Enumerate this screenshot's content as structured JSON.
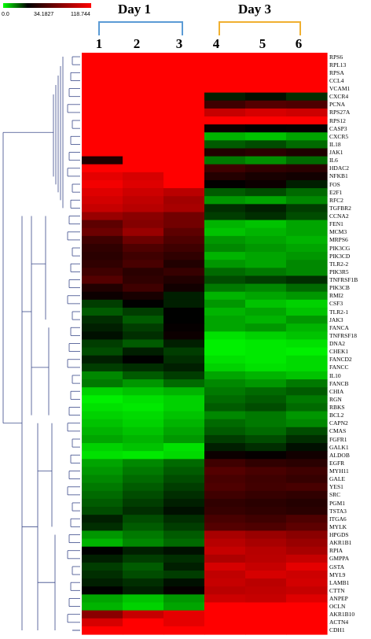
{
  "legend": {
    "min_label": "0.0",
    "mid_label": "34.1827",
    "max_label": "118.744",
    "colors": {
      "low": "#00ff00",
      "mid": "#000000",
      "high": "#ff0000"
    }
  },
  "groups": [
    {
      "label": "Day 1",
      "color": "#5b9bd5"
    },
    {
      "label": "Day 3",
      "color": "#f0b030"
    }
  ],
  "column_labels": [
    "1",
    "2",
    "3",
    "4",
    "5",
    "6"
  ],
  "chart_data": {
    "type": "heatmap",
    "title": "",
    "scale": {
      "min": 0.0,
      "mid": 34.1827,
      "max": 118.744
    },
    "columns": [
      "1",
      "2",
      "3",
      "4",
      "5",
      "6"
    ],
    "rows": [
      "RPS6",
      "RPL13",
      "RPSA",
      "CCL4",
      "VCAM1",
      "CXCR4",
      "PCNA",
      "RPS27A",
      "RPS12",
      "CASP3",
      "CXCR5",
      "IL18",
      "JAK1",
      "IL6",
      "HDAC2",
      "NFKB1",
      "FOS",
      "E2F1",
      "RFC2",
      "TGFBR2",
      "CCNA2",
      "FEN1",
      "MCM3",
      "MRPS6",
      "PIK3CG",
      "PIK3CD",
      "TLR2-2",
      "PIK3R5",
      "TNFRSF1B",
      "PIK3CB",
      "RMI2",
      "CSF3",
      "TLR2-1",
      "JAK3",
      "FANCA",
      "TNFRSF18",
      "DNA2",
      "CHEK1",
      "FANCD2",
      "FANCC",
      "IL10",
      "FANCB",
      "CHIA",
      "RGN",
      "RBKS",
      "BCL2",
      "CAPN2",
      "CMAS",
      "FGFR1",
      "GALK1",
      "ALDOB",
      "EGFR",
      "MYH11",
      "GALE",
      "YES1",
      "SRC",
      "PGM1",
      "TSTA3",
      "ITGA6",
      "MYLK",
      "HPGDS",
      "AKR1B1",
      "RPIA",
      "GMPPA",
      "GSTA",
      "MYL9",
      "LAMB1",
      "CTTN",
      "ANPEP",
      "OCLN",
      "AKR1B10",
      "ACTN4",
      "CDH1"
    ],
    "values": [
      [
        119,
        119,
        119,
        119,
        119,
        119
      ],
      [
        119,
        119,
        119,
        119,
        119,
        119
      ],
      [
        119,
        119,
        119,
        119,
        119,
        119
      ],
      [
        119,
        119,
        119,
        119,
        119,
        119
      ],
      [
        119,
        119,
        119,
        119,
        119,
        119
      ],
      [
        119,
        119,
        119,
        30,
        32,
        28
      ],
      [
        119,
        119,
        119,
        55,
        62,
        60
      ],
      [
        119,
        119,
        119,
        100,
        105,
        102
      ],
      [
        119,
        119,
        119,
        119,
        119,
        119
      ],
      [
        119,
        119,
        119,
        38,
        35,
        36
      ],
      [
        119,
        119,
        119,
        10,
        8,
        12
      ],
      [
        119,
        119,
        119,
        22,
        24,
        20
      ],
      [
        119,
        119,
        119,
        45,
        48,
        44
      ],
      [
        45,
        119,
        119,
        18,
        15,
        20
      ],
      [
        119,
        119,
        119,
        55,
        50,
        48
      ],
      [
        110,
        105,
        119,
        46,
        42,
        40
      ],
      [
        115,
        108,
        119,
        35,
        38,
        30
      ],
      [
        108,
        102,
        96,
        22,
        24,
        20
      ],
      [
        104,
        98,
        88,
        14,
        12,
        16
      ],
      [
        100,
        95,
        90,
        28,
        30,
        26
      ],
      [
        85,
        80,
        72,
        26,
        28,
        24
      ],
      [
        65,
        78,
        72,
        10,
        8,
        12
      ],
      [
        70,
        85,
        65,
        8,
        10,
        12
      ],
      [
        55,
        70,
        60,
        14,
        12,
        10
      ],
      [
        50,
        60,
        55,
        16,
        14,
        12
      ],
      [
        48,
        55,
        50,
        10,
        12,
        14
      ],
      [
        50,
        58,
        45,
        14,
        12,
        16
      ],
      [
        55,
        48,
        52,
        20,
        18,
        16
      ],
      [
        62,
        50,
        45,
        24,
        26,
        28
      ],
      [
        45,
        55,
        40,
        18,
        16,
        20
      ],
      [
        38,
        42,
        30,
        10,
        12,
        14
      ],
      [
        26,
        34,
        30,
        14,
        8,
        6
      ],
      [
        22,
        26,
        34,
        10,
        12,
        8
      ],
      [
        28,
        22,
        34,
        12,
        10,
        14
      ],
      [
        30,
        26,
        36,
        12,
        14,
        10
      ],
      [
        32,
        28,
        38,
        4,
        6,
        8
      ],
      [
        26,
        22,
        30,
        2,
        3,
        4
      ],
      [
        24,
        30,
        26,
        2,
        3,
        2
      ],
      [
        30,
        34,
        28,
        4,
        3,
        5
      ],
      [
        26,
        28,
        30,
        6,
        4,
        5
      ],
      [
        16,
        22,
        26,
        12,
        10,
        8
      ],
      [
        18,
        14,
        20,
        16,
        14,
        18
      ],
      [
        6,
        8,
        10,
        18,
        20,
        22
      ],
      [
        2,
        4,
        6,
        20,
        22,
        18
      ],
      [
        4,
        3,
        6,
        22,
        24,
        20
      ],
      [
        6,
        5,
        8,
        16,
        18,
        14
      ],
      [
        8,
        6,
        10,
        20,
        18,
        16
      ],
      [
        10,
        8,
        12,
        22,
        20,
        24
      ],
      [
        12,
        10,
        14,
        26,
        24,
        28
      ],
      [
        6,
        8,
        4,
        30,
        28,
        32
      ],
      [
        4,
        3,
        5,
        38,
        36,
        40
      ],
      [
        12,
        16,
        20,
        55,
        50,
        48
      ],
      [
        14,
        18,
        22,
        62,
        58,
        55
      ],
      [
        16,
        20,
        24,
        58,
        55,
        52
      ],
      [
        18,
        22,
        26,
        60,
        56,
        58
      ],
      [
        20,
        24,
        28,
        55,
        52,
        50
      ],
      [
        22,
        26,
        30,
        50,
        48,
        46
      ],
      [
        24,
        28,
        32,
        52,
        50,
        48
      ],
      [
        30,
        24,
        28,
        58,
        55,
        60
      ],
      [
        28,
        22,
        26,
        62,
        60,
        65
      ],
      [
        14,
        18,
        22,
        90,
        85,
        80
      ],
      [
        10,
        16,
        20,
        95,
        90,
        85
      ],
      [
        34,
        30,
        32,
        100,
        95,
        90
      ],
      [
        30,
        26,
        28,
        92,
        96,
        100
      ],
      [
        26,
        22,
        30,
        105,
        100,
        110
      ],
      [
        28,
        24,
        26,
        98,
        105,
        102
      ],
      [
        30,
        28,
        32,
        100,
        96,
        104
      ],
      [
        34,
        30,
        36,
        96,
        98,
        100
      ],
      [
        12,
        8,
        14,
        102,
        100,
        108
      ],
      [
        10,
        6,
        12,
        119,
        119,
        119
      ],
      [
        80,
        100,
        110,
        119,
        119,
        119
      ],
      [
        105,
        119,
        110,
        119,
        119,
        119
      ],
      [
        119,
        119,
        119,
        119,
        119,
        119
      ]
    ]
  }
}
